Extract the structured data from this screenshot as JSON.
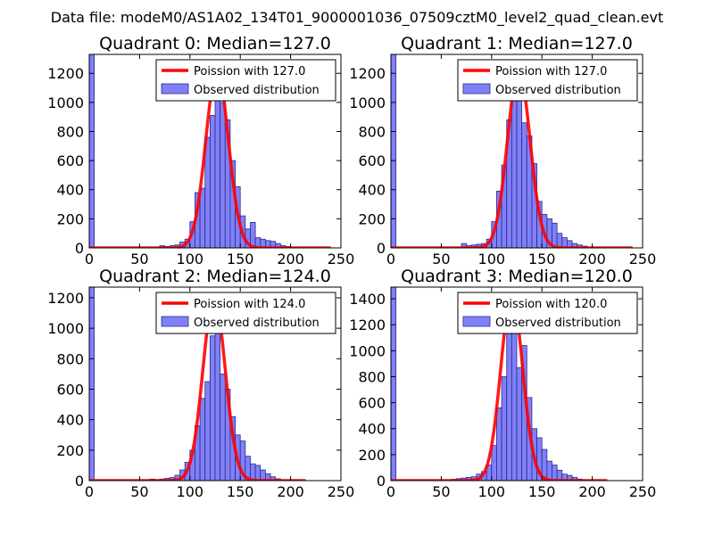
{
  "figure_title": "Data file: modeM0/AS1A02_134T01_9000001036_07509cztM0_level2_quad_clean.evt",
  "colors": {
    "bar_fill": "#8080f8",
    "bar_edge": "#2a2a8a",
    "curve": "#ff0000"
  },
  "chart_data": [
    {
      "type": "bar",
      "title": "Quadrant 0: Median=127.0",
      "xlim": [
        0,
        250
      ],
      "ylim": [
        0,
        1330
      ],
      "xticks": [
        0,
        50,
        100,
        150,
        200,
        250
      ],
      "yticks": [
        0,
        200,
        400,
        600,
        800,
        1000,
        1200
      ],
      "bins": [
        [
          0,
          5,
          1330
        ],
        [
          70,
          75,
          15
        ],
        [
          75,
          80,
          10
        ],
        [
          80,
          85,
          15
        ],
        [
          85,
          90,
          20
        ],
        [
          90,
          95,
          40
        ],
        [
          95,
          100,
          60
        ],
        [
          100,
          105,
          180
        ],
        [
          105,
          110,
          380
        ],
        [
          110,
          115,
          410
        ],
        [
          115,
          120,
          760
        ],
        [
          120,
          125,
          910
        ],
        [
          125,
          130,
          1120
        ],
        [
          130,
          135,
          1000
        ],
        [
          135,
          140,
          880
        ],
        [
          140,
          145,
          600
        ],
        [
          145,
          150,
          420
        ],
        [
          150,
          155,
          220
        ],
        [
          155,
          160,
          130
        ],
        [
          160,
          165,
          175
        ],
        [
          165,
          170,
          70
        ],
        [
          170,
          175,
          60
        ],
        [
          175,
          180,
          50
        ],
        [
          180,
          185,
          45
        ],
        [
          185,
          190,
          30
        ],
        [
          190,
          195,
          15
        ],
        [
          195,
          200,
          10
        ]
      ],
      "poisson": {
        "mean": 127.0,
        "peak": 1220,
        "x_range": [
          0,
          240
        ]
      },
      "legend": [
        "Poission with 127.0",
        "Observed distribution"
      ]
    },
    {
      "type": "bar",
      "title": "Quadrant 1: Median=127.0",
      "xlim": [
        0,
        250
      ],
      "ylim": [
        0,
        1330
      ],
      "xticks": [
        0,
        50,
        100,
        150,
        200,
        250
      ],
      "yticks": [
        0,
        200,
        400,
        600,
        800,
        1000,
        1200
      ],
      "bins": [
        [
          0,
          5,
          1330
        ],
        [
          70,
          75,
          30
        ],
        [
          75,
          80,
          15
        ],
        [
          80,
          85,
          20
        ],
        [
          85,
          90,
          25
        ],
        [
          90,
          95,
          30
        ],
        [
          95,
          100,
          60
        ],
        [
          100,
          105,
          180
        ],
        [
          105,
          110,
          390
        ],
        [
          110,
          115,
          570
        ],
        [
          115,
          120,
          880
        ],
        [
          120,
          125,
          1080
        ],
        [
          125,
          130,
          1180
        ],
        [
          130,
          135,
          860
        ],
        [
          135,
          140,
          770
        ],
        [
          140,
          145,
          580
        ],
        [
          145,
          150,
          320
        ],
        [
          150,
          155,
          230
        ],
        [
          155,
          160,
          200
        ],
        [
          160,
          165,
          170
        ],
        [
          165,
          170,
          100
        ],
        [
          170,
          175,
          70
        ],
        [
          175,
          180,
          50
        ],
        [
          180,
          185,
          30
        ],
        [
          185,
          190,
          20
        ],
        [
          190,
          195,
          12
        ]
      ],
      "poisson": {
        "mean": 127.0,
        "peak": 1220,
        "x_range": [
          0,
          240
        ]
      },
      "legend": [
        "Poission with 127.0",
        "Observed distribution"
      ]
    },
    {
      "type": "bar",
      "title": "Quadrant 2: Median=124.0",
      "xlim": [
        0,
        250
      ],
      "ylim": [
        0,
        1270
      ],
      "xticks": [
        0,
        50,
        100,
        150,
        200,
        250
      ],
      "yticks": [
        0,
        200,
        400,
        600,
        800,
        1000,
        1200
      ],
      "bins": [
        [
          0,
          5,
          1270
        ],
        [
          60,
          65,
          10
        ],
        [
          65,
          70,
          5
        ],
        [
          70,
          75,
          10
        ],
        [
          75,
          80,
          15
        ],
        [
          80,
          85,
          20
        ],
        [
          85,
          90,
          35
        ],
        [
          90,
          95,
          70
        ],
        [
          95,
          100,
          120
        ],
        [
          100,
          105,
          200
        ],
        [
          105,
          110,
          360
        ],
        [
          110,
          115,
          540
        ],
        [
          115,
          120,
          650
        ],
        [
          120,
          125,
          950
        ],
        [
          125,
          130,
          1100
        ],
        [
          130,
          135,
          700
        ],
        [
          135,
          140,
          600
        ],
        [
          140,
          145,
          420
        ],
        [
          145,
          150,
          300
        ],
        [
          150,
          155,
          260
        ],
        [
          155,
          160,
          160
        ],
        [
          160,
          165,
          110
        ],
        [
          165,
          170,
          100
        ],
        [
          170,
          175,
          70
        ],
        [
          175,
          180,
          45
        ],
        [
          180,
          185,
          25
        ],
        [
          185,
          190,
          12
        ]
      ],
      "poisson": {
        "mean": 124.0,
        "peak": 1200,
        "x_range": [
          0,
          215
        ]
      },
      "legend": [
        "Poission with 124.0",
        "Observed distribution"
      ]
    },
    {
      "type": "bar",
      "title": "Quadrant 3: Median=120.0",
      "xlim": [
        0,
        250
      ],
      "ylim": [
        0,
        1490
      ],
      "xticks": [
        0,
        50,
        100,
        150,
        200,
        250
      ],
      "yticks": [
        0,
        200,
        400,
        600,
        800,
        1000,
        1200,
        1400
      ],
      "bins": [
        [
          0,
          5,
          1490
        ],
        [
          60,
          65,
          10
        ],
        [
          65,
          70,
          15
        ],
        [
          70,
          75,
          20
        ],
        [
          75,
          80,
          25
        ],
        [
          80,
          85,
          30
        ],
        [
          85,
          90,
          50
        ],
        [
          90,
          95,
          70
        ],
        [
          95,
          100,
          120
        ],
        [
          100,
          105,
          270
        ],
        [
          105,
          110,
          560
        ],
        [
          110,
          115,
          800
        ],
        [
          115,
          120,
          1150
        ],
        [
          120,
          125,
          1250
        ],
        [
          125,
          130,
          870
        ],
        [
          130,
          135,
          1040
        ],
        [
          135,
          140,
          640
        ],
        [
          140,
          145,
          400
        ],
        [
          145,
          150,
          330
        ],
        [
          150,
          155,
          240
        ],
        [
          155,
          160,
          150
        ],
        [
          160,
          165,
          120
        ],
        [
          165,
          170,
          80
        ],
        [
          170,
          175,
          50
        ],
        [
          175,
          180,
          40
        ],
        [
          180,
          185,
          25
        ],
        [
          185,
          190,
          12
        ]
      ],
      "poisson": {
        "mean": 120.0,
        "peak": 1420,
        "x_range": [
          0,
          215
        ]
      },
      "legend": [
        "Poission with 120.0",
        "Observed distribution"
      ]
    }
  ]
}
